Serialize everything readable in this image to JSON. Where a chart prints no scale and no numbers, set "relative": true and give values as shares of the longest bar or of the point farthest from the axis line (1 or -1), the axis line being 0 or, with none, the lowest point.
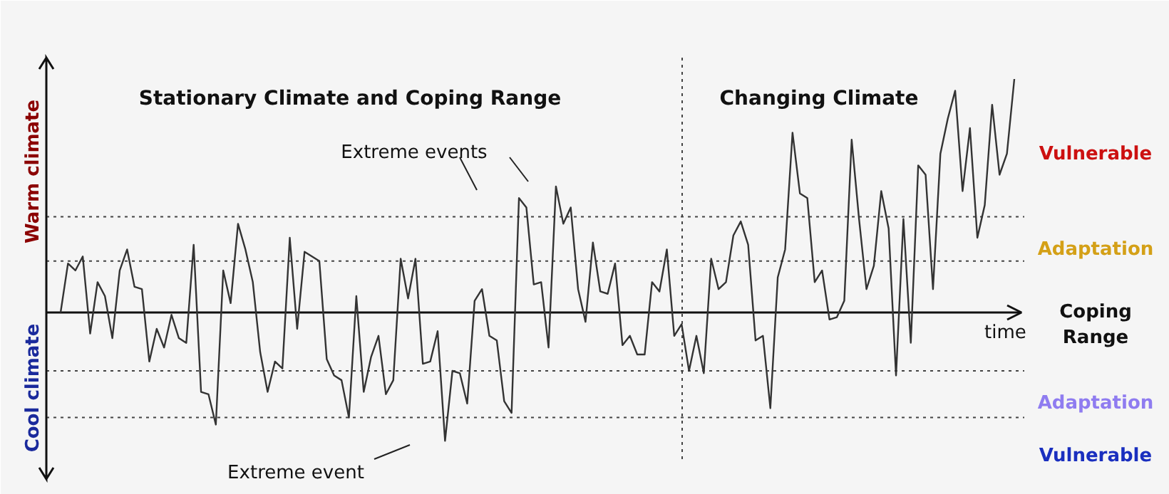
{
  "chart_data": {
    "type": "line",
    "relative": true,
    "xlabel": "time",
    "line_style": "solid",
    "categories": [
      null,
      null,
      null,
      null,
      null,
      null,
      null,
      null,
      null,
      null,
      null,
      null,
      null,
      null,
      null,
      null,
      null,
      null,
      null,
      null,
      null,
      null,
      null,
      null,
      null,
      null,
      null,
      null,
      null,
      null,
      null,
      null,
      null,
      null,
      null,
      null,
      null,
      null,
      null,
      null,
      null,
      null,
      null,
      null,
      null,
      null,
      null,
      null,
      null,
      null,
      null,
      null,
      null,
      null,
      null,
      null,
      null,
      null,
      null,
      null,
      null,
      null,
      null,
      null,
      null,
      null,
      null,
      null,
      null,
      null,
      null,
      null,
      null,
      null,
      null,
      null,
      null,
      null,
      null,
      null,
      null,
      null,
      null,
      null,
      null,
      null,
      null,
      null,
      null,
      null,
      null,
      null,
      null,
      null,
      null,
      null,
      null,
      null,
      null,
      null,
      null,
      null,
      null,
      null,
      null,
      null,
      null,
      null,
      null,
      null,
      null,
      null,
      null,
      null,
      null,
      null,
      null,
      null,
      null,
      null,
      null,
      null,
      null,
      null,
      null,
      null,
      null,
      null,
      null,
      null
    ],
    "series": [
      {
        "color": "#333333",
        "values": [
          0.0,
          0.21,
          0.18,
          0.24,
          -0.09,
          0.13,
          0.07,
          -0.11,
          0.18,
          0.27,
          0.11,
          0.1,
          -0.21,
          -0.07,
          -0.15,
          -0.01,
          -0.11,
          -0.13,
          0.29,
          -0.34,
          -0.35,
          -0.48,
          0.18,
          0.04,
          0.38,
          0.27,
          0.13,
          -0.17,
          -0.34,
          -0.21,
          -0.24,
          0.32,
          -0.07,
          0.26,
          0.24,
          0.22,
          -0.2,
          -0.27,
          -0.29,
          -0.45,
          0.07,
          -0.34,
          -0.19,
          -0.1,
          -0.35,
          -0.29,
          0.23,
          0.06,
          0.23,
          -0.22,
          -0.21,
          -0.08,
          -0.55,
          -0.25,
          -0.26,
          -0.39,
          0.05,
          0.1,
          -0.1,
          -0.12,
          -0.38,
          -0.43,
          0.49,
          0.45,
          0.12,
          0.13,
          -0.15,
          0.54,
          0.38,
          0.45,
          0.1,
          -0.04,
          0.3,
          0.09,
          0.08,
          0.21,
          -0.14,
          -0.1,
          -0.18,
          -0.18,
          0.13,
          0.09,
          0.27,
          -0.1,
          -0.05,
          -0.25,
          -0.1,
          -0.26,
          0.23,
          0.1,
          0.13,
          0.33,
          0.39,
          0.29,
          -0.12,
          -0.1,
          -0.41,
          0.15,
          0.27,
          0.77,
          0.51,
          0.49,
          0.13,
          0.18,
          -0.03,
          -0.02,
          0.05,
          0.74,
          0.4,
          0.1,
          0.2,
          0.52,
          0.36,
          -0.27,
          0.4,
          -0.13,
          0.63,
          0.59,
          0.1,
          0.68,
          0.83,
          0.95,
          0.52,
          0.79,
          0.32,
          0.46,
          0.89,
          0.59,
          0.68,
          1.0
        ]
      }
    ],
    "ref_lines": [
      {
        "axis": "y",
        "value": 0.41,
        "line_style": "dotted"
      },
      {
        "axis": "y",
        "value": 0.22,
        "line_style": "dotted"
      },
      {
        "axis": "y",
        "value": -0.25,
        "line_style": "dotted"
      },
      {
        "axis": "y",
        "value": -0.45,
        "line_style": "dotted"
      }
    ],
    "annotations": [
      "Stationary Climate and Coping Range",
      "Changing Climate",
      "Extreme events",
      "Extreme event",
      "Warm climate",
      "Cool climate",
      "Vulnerable",
      "Adaptation",
      "Coping Range",
      "Adaptation",
      "Vulnerable"
    ]
  }
}
